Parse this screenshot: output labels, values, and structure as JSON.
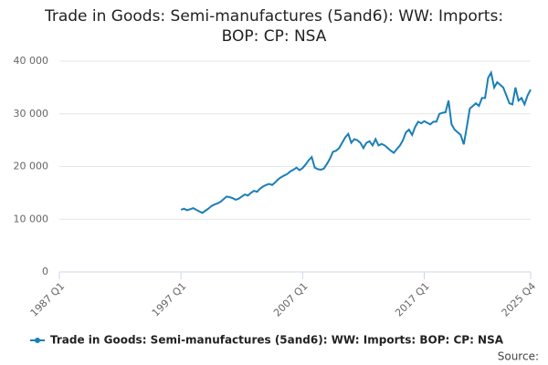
{
  "chart_data": {
    "type": "line",
    "title": "Trade in Goods: Semi-manufactures (5and6): WW: Imports: BOP: CP: NSA",
    "source": "Source:",
    "categories": [
      "1987 Q1",
      "1987 Q2",
      "1987 Q3",
      "1987 Q4",
      "1988 Q1",
      "1988 Q2",
      "1988 Q3",
      "1988 Q4",
      "1989 Q1",
      "1989 Q2",
      "1989 Q3",
      "1989 Q4",
      "1990 Q1",
      "1990 Q2",
      "1990 Q3",
      "1990 Q4",
      "1991 Q1",
      "1991 Q2",
      "1991 Q3",
      "1991 Q4",
      "1992 Q1",
      "1992 Q2",
      "1992 Q3",
      "1992 Q4",
      "1993 Q1",
      "1993 Q2",
      "1993 Q3",
      "1993 Q4",
      "1994 Q1",
      "1994 Q2",
      "1994 Q3",
      "1994 Q4",
      "1995 Q1",
      "1995 Q2",
      "1995 Q3",
      "1995 Q4",
      "1996 Q1",
      "1996 Q2",
      "1996 Q3",
      "1996 Q4",
      "1997 Q1",
      "1997 Q2",
      "1997 Q3",
      "1997 Q4",
      "1998 Q1",
      "1998 Q2",
      "1998 Q3",
      "1998 Q4",
      "1999 Q1",
      "1999 Q2",
      "1999 Q3",
      "1999 Q4",
      "2000 Q1",
      "2000 Q2",
      "2000 Q3",
      "2000 Q4",
      "2001 Q1",
      "2001 Q2",
      "2001 Q3",
      "2001 Q4",
      "2002 Q1",
      "2002 Q2",
      "2002 Q3",
      "2002 Q4",
      "2003 Q1",
      "2003 Q2",
      "2003 Q3",
      "2003 Q4",
      "2004 Q1",
      "2004 Q2",
      "2004 Q3",
      "2004 Q4",
      "2005 Q1",
      "2005 Q2",
      "2005 Q3",
      "2005 Q4",
      "2006 Q1",
      "2006 Q2",
      "2006 Q3",
      "2006 Q4",
      "2007 Q1",
      "2007 Q2",
      "2007 Q3",
      "2007 Q4",
      "2008 Q1",
      "2008 Q2",
      "2008 Q3",
      "2008 Q4",
      "2009 Q1",
      "2009 Q2",
      "2009 Q3",
      "2009 Q4",
      "2010 Q1",
      "2010 Q2",
      "2010 Q3",
      "2010 Q4",
      "2011 Q1",
      "2011 Q2",
      "2011 Q3",
      "2011 Q4",
      "2012 Q1",
      "2012 Q2",
      "2012 Q3",
      "2012 Q4",
      "2013 Q1",
      "2013 Q2",
      "2013 Q3",
      "2013 Q4",
      "2014 Q1",
      "2014 Q2",
      "2014 Q3",
      "2014 Q4",
      "2015 Q1",
      "2015 Q2",
      "2015 Q3",
      "2015 Q4",
      "2016 Q1",
      "2016 Q2",
      "2016 Q3",
      "2016 Q4",
      "2017 Q1",
      "2017 Q2",
      "2017 Q3",
      "2017 Q4",
      "2018 Q1",
      "2018 Q2",
      "2018 Q3",
      "2018 Q4",
      "2019 Q1",
      "2019 Q2",
      "2019 Q3",
      "2019 Q4",
      "2020 Q1",
      "2020 Q2",
      "2020 Q3",
      "2020 Q4",
      "2021 Q1",
      "2021 Q2",
      "2021 Q3",
      "2021 Q4",
      "2022 Q1",
      "2022 Q2",
      "2022 Q3",
      "2022 Q4",
      "2023 Q1",
      "2023 Q2",
      "2023 Q3",
      "2023 Q4",
      "2024 Q1",
      "2024 Q2",
      "2024 Q3",
      "2024 Q4",
      "2025 Q1",
      "2025 Q2",
      "2025 Q3",
      "2025 Q4"
    ],
    "series": [
      {
        "name": "Trade in Goods: Semi-manufactures (5and6): WW: Imports: BOP: CP: NSA",
        "color": "#1a7fb8",
        "values": [
          null,
          null,
          null,
          null,
          null,
          null,
          null,
          null,
          null,
          null,
          null,
          null,
          null,
          null,
          null,
          null,
          null,
          null,
          null,
          null,
          null,
          null,
          null,
          null,
          null,
          null,
          null,
          null,
          null,
          null,
          null,
          null,
          null,
          null,
          null,
          null,
          null,
          null,
          null,
          null,
          11800,
          12000,
          11700,
          11900,
          12100,
          11800,
          11500,
          11200,
          11600,
          12000,
          12500,
          12800,
          13000,
          13300,
          13800,
          14300,
          14200,
          14000,
          13700,
          13900,
          14300,
          14700,
          14500,
          15000,
          15400,
          15200,
          15800,
          16200,
          16500,
          16700,
          16500,
          17000,
          17600,
          18000,
          18300,
          18600,
          19100,
          19400,
          19800,
          19300,
          19700,
          20400,
          21200,
          21800,
          19800,
          19500,
          19400,
          19600,
          20500,
          21500,
          22800,
          23000,
          23500,
          24500,
          25500,
          26200,
          24500,
          25200,
          25000,
          24500,
          23500,
          24500,
          24800,
          24000,
          25200,
          24000,
          24300,
          24000,
          23500,
          23000,
          22600,
          23300,
          24000,
          25000,
          26500,
          27000,
          26000,
          27500,
          28500,
          28200,
          28600,
          28300,
          28000,
          28500,
          28500,
          30000,
          30200,
          30300,
          32500,
          28000,
          27000,
          26500,
          26000,
          24200,
          27500,
          31000,
          31500,
          32000,
          31500,
          33000,
          33000,
          36800,
          37800,
          35000,
          36000,
          35500,
          35000,
          33500,
          32000,
          31800,
          35000,
          32500,
          33000,
          31800,
          33500,
          34600
        ]
      }
    ],
    "xticks": [
      "1987 Q1",
      "1997 Q1",
      "2007 Q1",
      "2017 Q1",
      "2025 Q4"
    ],
    "ylim": [
      0,
      40000
    ],
    "yticks": [
      {
        "value": 0,
        "label": "0"
      },
      {
        "value": 10000,
        "label": "10 000"
      },
      {
        "value": 20000,
        "label": "20 000"
      },
      {
        "value": 30000,
        "label": "30 000"
      },
      {
        "value": 40000,
        "label": "40 000"
      }
    ],
    "grid": true,
    "legend": "bottom"
  }
}
